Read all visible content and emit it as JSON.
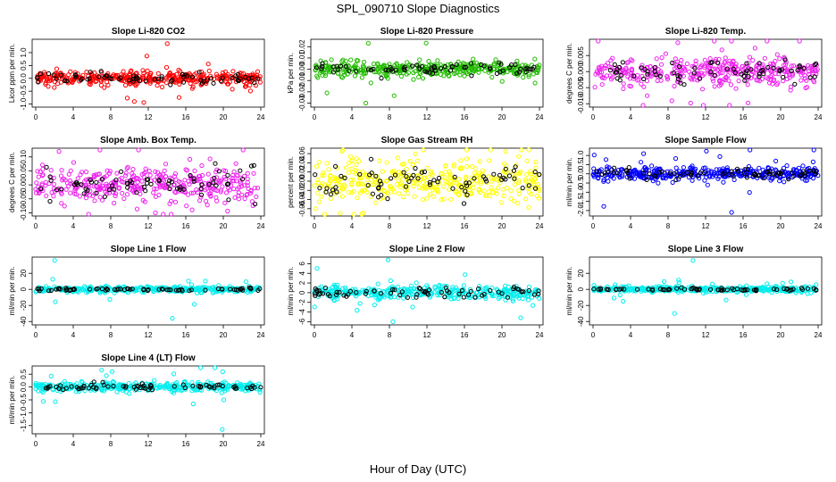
{
  "figure": {
    "title": "SPL_090710  Slope Diagnostics",
    "xlabel": "Hour of Day (UTC)"
  },
  "chart_data": [
    {
      "type": "scatter",
      "title": "Slope Li-820 CO2",
      "ylabel": "Licor ppm per min.",
      "xlim": [
        0,
        24
      ],
      "xticks": [
        0,
        4,
        8,
        12,
        16,
        20,
        24
      ],
      "ylim": [
        -1.05,
        1.45
      ],
      "yticks": [
        -1.0,
        -0.5,
        0.0,
        0.5,
        1.0
      ],
      "ytick_labels": [
        "-1.0",
        "-0.5",
        "0.0",
        "0.5",
        "1.0"
      ],
      "series": [
        {
          "color": "#ff0000",
          "core": 0.25,
          "spread": 0.45,
          "outlier_lo": -0.9,
          "outlier_hi": 1.35
        },
        {
          "color": "#000000",
          "core": 0.2,
          "spread": 0.3
        }
      ]
    },
    {
      "type": "scatter",
      "title": "Slope Li-820 Pressure",
      "ylabel": "kPa per min.",
      "xlim": [
        0,
        24
      ],
      "xticks": [
        0,
        4,
        8,
        12,
        16,
        20,
        24
      ],
      "ylim": [
        -0.032,
        0.025
      ],
      "yticks": [
        -0.03,
        -0.02,
        -0.01,
        0.0,
        0.01,
        0.02
      ],
      "ytick_labels": [
        "-0.03",
        "-0.02",
        "-0.01",
        "0.00",
        "0.01",
        "0.02"
      ],
      "series": [
        {
          "color": "#22bb00",
          "core": 0.006,
          "spread": 0.01,
          "outlier_lo": -0.03,
          "outlier_hi": 0.023
        },
        {
          "color": "#000000",
          "core": 0.005,
          "spread": 0.008
        }
      ]
    },
    {
      "type": "scatter",
      "title": "Slope Li-820 Temp.",
      "ylabel": "degrees C per min.",
      "xlim": [
        0,
        24
      ],
      "xticks": [
        0,
        4,
        8,
        12,
        16,
        20,
        24
      ],
      "ylim": [
        -0.0105,
        0.0095
      ],
      "yticks": [
        -0.01,
        -0.005,
        0.0,
        0.005
      ],
      "ytick_labels": [
        "-0.010",
        "-0.005",
        "0.000",
        "0.005"
      ],
      "series": [
        {
          "color": "#ee22ee",
          "core": 0.004,
          "spread": 0.007,
          "outlier_lo": -0.0098,
          "outlier_hi": 0.009
        },
        {
          "color": "#000000",
          "core": 0.003,
          "spread": 0.005
        }
      ]
    },
    {
      "type": "scatter",
      "title": "Slope Amb. Box Temp.",
      "ylabel": "degrees C per min.",
      "xlim": [
        0,
        24
      ],
      "xticks": [
        0,
        4,
        8,
        12,
        16,
        20,
        24
      ],
      "ylim": [
        -0.105,
        0.125
      ],
      "yticks": [
        -0.1,
        -0.05,
        0.0,
        0.05,
        0.1
      ],
      "ytick_labels": [
        "-0.10",
        "-0.05",
        "0.00",
        "0.05",
        "0.10"
      ],
      "series": [
        {
          "color": "#ee22ee",
          "core": 0.06,
          "spread": 0.08,
          "outlier_lo": -0.1,
          "outlier_hi": 0.12
        },
        {
          "color": "#000000",
          "core": 0.05,
          "spread": 0.06
        }
      ]
    },
    {
      "type": "scatter",
      "title": "Slope Gas Stream RH",
      "ylabel": "percent per min.",
      "xlim": [
        0,
        24
      ],
      "xticks": [
        0,
        4,
        8,
        12,
        16,
        20,
        24
      ],
      "ylim": [
        -0.072,
        0.068
      ],
      "yticks": [
        -0.06,
        -0.04,
        -0.02,
        0.0,
        0.02,
        0.04,
        0.06
      ],
      "ytick_labels": [
        "-0.06",
        "-0.04",
        "-0.02",
        "0.00",
        "0.02",
        "0.04",
        "0.06"
      ],
      "series": [
        {
          "color": "#ffff00",
          "core": 0.04,
          "spread": 0.06,
          "outlier_lo": -0.07,
          "outlier_hi": 0.065
        },
        {
          "color": "#000000",
          "core": 0.035,
          "spread": 0.05
        }
      ]
    },
    {
      "type": "scatter",
      "title": "Slope Sample Flow",
      "ylabel": "ml/min per min.",
      "xlim": [
        0,
        24
      ],
      "xticks": [
        0,
        4,
        8,
        12,
        16,
        20,
        24
      ],
      "ylim": [
        -2.2,
        1.3
      ],
      "yticks": [
        -2.0,
        -1.5,
        -1.0,
        -0.5,
        0.0,
        0.5,
        1.0
      ],
      "ytick_labels": [
        "-2.0",
        "-1.5",
        "-1.0",
        "-0.5",
        "0.0",
        "0.5",
        "1.0"
      ],
      "series": [
        {
          "color": "#0000ff",
          "core": 0.3,
          "spread": 0.6,
          "outlier_lo": -2.1,
          "outlier_hi": 1.1
        },
        {
          "color": "#000000",
          "core": 0.25,
          "spread": 0.45
        }
      ]
    },
    {
      "type": "scatter",
      "title": "Slope Line 1 Flow",
      "ylabel": "ml/min per min.",
      "xlim": [
        0,
        24
      ],
      "xticks": [
        0,
        4,
        8,
        12,
        16,
        20,
        24
      ],
      "ylim": [
        -42,
        38
      ],
      "yticks": [
        -40,
        -20,
        0,
        20
      ],
      "ytick_labels": [
        "-40",
        "-20",
        "0",
        "20"
      ],
      "series": [
        {
          "color": "#00eeee",
          "core": 3,
          "spread": 6,
          "outlier_lo": -36,
          "outlier_hi": 36
        },
        {
          "color": "#000000",
          "core": 1.5,
          "spread": 3
        }
      ]
    },
    {
      "type": "scatter",
      "title": "Slope Line 2 Flow",
      "ylabel": "ml/min per min.",
      "xlim": [
        0,
        24
      ],
      "xticks": [
        0,
        4,
        8,
        12,
        16,
        20,
        24
      ],
      "ylim": [
        -6.3,
        7.0
      ],
      "yticks": [
        -6,
        -4,
        -2,
        0,
        2,
        4,
        6
      ],
      "ytick_labels": [
        "-6",
        "-4",
        "-2",
        "0",
        "2",
        "4",
        "6"
      ],
      "series": [
        {
          "color": "#00eeee",
          "core": 1.2,
          "spread": 2.2,
          "outlier_lo": -6,
          "outlier_hi": 6.8
        },
        {
          "color": "#000000",
          "core": 1.0,
          "spread": 1.6
        }
      ]
    },
    {
      "type": "scatter",
      "title": "Slope Line 3 Flow",
      "ylabel": "ml/min per min.",
      "xlim": [
        0,
        24
      ],
      "xticks": [
        0,
        4,
        8,
        12,
        16,
        20,
        24
      ],
      "ylim": [
        -42,
        38
      ],
      "yticks": [
        -40,
        -20,
        0,
        20
      ],
      "ytick_labels": [
        "-40",
        "-20",
        "0",
        "20"
      ],
      "series": [
        {
          "color": "#00eeee",
          "core": 3,
          "spread": 6,
          "outlier_lo": -30,
          "outlier_hi": 36
        },
        {
          "color": "#000000",
          "core": 1.5,
          "spread": 3
        }
      ]
    },
    {
      "type": "scatter",
      "title": "Slope Line 4 (LT) Flow",
      "ylabel": "ml/min per min.",
      "xlim": [
        0,
        24
      ],
      "xticks": [
        0,
        4,
        8,
        12,
        16,
        20,
        24
      ],
      "ylim": [
        -1.75,
        0.75
      ],
      "yticks": [
        -1.5,
        -1.0,
        -0.5,
        0.0,
        0.5
      ],
      "ytick_labels": [
        "-1.5",
        "-1.0",
        "-0.5",
        "0.0",
        "0.5"
      ],
      "series": [
        {
          "color": "#00eeee",
          "core": 0.15,
          "spread": 0.35,
          "outlier_lo": -1.65,
          "outlier_hi": 0.6
        },
        {
          "color": "#000000",
          "core": 0.1,
          "spread": 0.2
        }
      ]
    }
  ]
}
